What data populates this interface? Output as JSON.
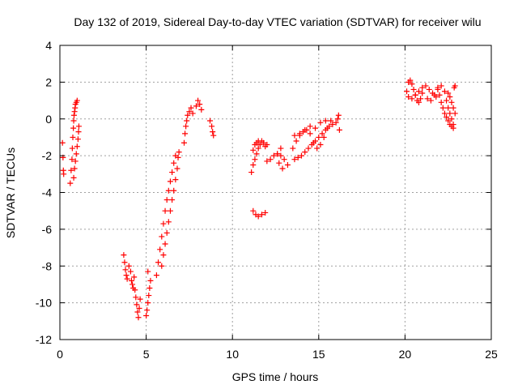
{
  "chart_data": {
    "type": "scatter",
    "title": "Day 132 of 2019, Sidereal Day-to-day VTEC variation (SDTVAR) for receiver wilu",
    "xlabel": "GPS time / hours",
    "ylabel": "SDTVAR / TECUs",
    "xlim": [
      0,
      25
    ],
    "ylim": [
      -12,
      4
    ],
    "xticks": [
      0,
      5,
      10,
      15,
      20,
      25
    ],
    "yticks": [
      -12,
      -10,
      -8,
      -6,
      -4,
      -2,
      0,
      2,
      4
    ],
    "grid": true,
    "legend": "none",
    "marker": "plus",
    "colors": {
      "series": "#ff0000",
      "axis": "#000000",
      "grid": "#a0a0a0"
    },
    "series": [
      {
        "values": [
          [
            0.15,
            -1.3
          ],
          [
            0.18,
            -2.1
          ],
          [
            0.2,
            -2.8
          ],
          [
            0.22,
            -3.0
          ],
          [
            0.6,
            -3.5
          ],
          [
            0.65,
            -2.8
          ],
          [
            0.7,
            -2.2
          ],
          [
            0.72,
            -1.6
          ],
          [
            0.75,
            -1.0
          ],
          [
            0.78,
            -0.5
          ],
          [
            0.8,
            -0.1
          ],
          [
            0.82,
            0.2
          ],
          [
            0.85,
            0.4
          ],
          [
            0.88,
            0.6
          ],
          [
            0.9,
            0.8
          ],
          [
            0.95,
            0.9
          ],
          [
            1.0,
            1.0
          ],
          [
            0.8,
            -3.2
          ],
          [
            0.85,
            -2.7
          ],
          [
            0.9,
            -2.3
          ],
          [
            0.95,
            -1.9
          ],
          [
            1.0,
            -1.5
          ],
          [
            1.05,
            -1.1
          ],
          [
            1.08,
            -0.7
          ],
          [
            1.1,
            -0.4
          ],
          [
            3.7,
            -7.4
          ],
          [
            3.75,
            -7.8
          ],
          [
            3.8,
            -8.2
          ],
          [
            3.85,
            -8.5
          ],
          [
            3.9,
            -8.7
          ],
          [
            4.0,
            -8.0
          ],
          [
            4.1,
            -8.3
          ],
          [
            4.15,
            -8.8
          ],
          [
            4.2,
            -9.0
          ],
          [
            4.25,
            -9.2
          ],
          [
            4.3,
            -8.6
          ],
          [
            4.35,
            -9.3
          ],
          [
            4.4,
            -9.7
          ],
          [
            4.45,
            -10.1
          ],
          [
            4.5,
            -10.5
          ],
          [
            4.55,
            -10.8
          ],
          [
            4.6,
            -10.3
          ],
          [
            4.65,
            -9.8
          ],
          [
            5.0,
            -10.7
          ],
          [
            5.05,
            -10.4
          ],
          [
            5.1,
            -10.0
          ],
          [
            5.15,
            -9.6
          ],
          [
            5.2,
            -9.2
          ],
          [
            5.25,
            -8.8
          ],
          [
            5.1,
            -8.3
          ],
          [
            5.6,
            -8.5
          ],
          [
            5.7,
            -7.8
          ],
          [
            5.8,
            -7.1
          ],
          [
            5.9,
            -6.4
          ],
          [
            6.0,
            -5.7
          ],
          [
            6.1,
            -5.0
          ],
          [
            6.2,
            -4.4
          ],
          [
            6.3,
            -3.9
          ],
          [
            6.4,
            -3.4
          ],
          [
            6.5,
            -2.9
          ],
          [
            6.6,
            -2.4
          ],
          [
            6.7,
            -2.0
          ],
          [
            5.9,
            -8.0
          ],
          [
            6.0,
            -7.4
          ],
          [
            6.1,
            -6.8
          ],
          [
            6.2,
            -6.2
          ],
          [
            6.3,
            -5.6
          ],
          [
            6.4,
            -5.0
          ],
          [
            6.5,
            -4.4
          ],
          [
            6.6,
            -3.9
          ],
          [
            6.7,
            -3.3
          ],
          [
            6.8,
            -2.7
          ],
          [
            6.85,
            -2.1
          ],
          [
            6.9,
            -1.8
          ],
          [
            7.2,
            -1.3
          ],
          [
            7.25,
            -0.8
          ],
          [
            7.3,
            -0.4
          ],
          [
            7.35,
            -0.1
          ],
          [
            7.4,
            0.2
          ],
          [
            7.5,
            0.4
          ],
          [
            7.6,
            0.6
          ],
          [
            7.7,
            0.3
          ],
          [
            7.9,
            0.7
          ],
          [
            8.0,
            1.0
          ],
          [
            8.1,
            0.8
          ],
          [
            8.2,
            0.5
          ],
          [
            8.7,
            -0.1
          ],
          [
            8.8,
            -0.4
          ],
          [
            8.85,
            -0.7
          ],
          [
            8.9,
            -0.9
          ],
          [
            11.1,
            -2.9
          ],
          [
            11.2,
            -2.5
          ],
          [
            11.3,
            -2.2
          ],
          [
            11.4,
            -1.9
          ],
          [
            11.5,
            -1.6
          ],
          [
            11.6,
            -1.4
          ],
          [
            11.7,
            -1.2
          ],
          [
            11.8,
            -1.3
          ],
          [
            11.9,
            -1.5
          ],
          [
            12.0,
            -1.4
          ],
          [
            11.2,
            -1.7
          ],
          [
            11.3,
            -1.4
          ],
          [
            11.4,
            -1.3
          ],
          [
            11.5,
            -1.2
          ],
          [
            12.0,
            -2.3
          ],
          [
            12.2,
            -2.2
          ],
          [
            12.4,
            -2.0
          ],
          [
            12.6,
            -1.9
          ],
          [
            12.8,
            -2.0
          ],
          [
            13.0,
            -2.2
          ],
          [
            13.2,
            -2.5
          ],
          [
            12.9,
            -2.7
          ],
          [
            12.7,
            -2.4
          ],
          [
            12.6,
            -1.9
          ],
          [
            12.8,
            -1.6
          ],
          [
            11.2,
            -5.0
          ],
          [
            11.35,
            -5.2
          ],
          [
            11.5,
            -5.3
          ],
          [
            11.7,
            -5.2
          ],
          [
            11.9,
            -5.1
          ],
          [
            13.6,
            -2.2
          ],
          [
            13.8,
            -2.1
          ],
          [
            14.0,
            -2.0
          ],
          [
            14.2,
            -1.8
          ],
          [
            14.4,
            -1.6
          ],
          [
            14.6,
            -1.4
          ],
          [
            14.8,
            -1.2
          ],
          [
            15.0,
            -1.0
          ],
          [
            15.2,
            -0.8
          ],
          [
            15.4,
            -0.6
          ],
          [
            15.6,
            -0.4
          ],
          [
            15.8,
            -0.3
          ],
          [
            13.5,
            -1.6
          ],
          [
            13.7,
            -1.2
          ],
          [
            13.9,
            -0.9
          ],
          [
            14.1,
            -0.7
          ],
          [
            14.3,
            -0.6
          ],
          [
            14.5,
            -0.8
          ],
          [
            14.7,
            -1.3
          ],
          [
            14.9,
            -1.6
          ],
          [
            15.1,
            -1.4
          ],
          [
            15.3,
            -1.0
          ],
          [
            15.5,
            -0.5
          ],
          [
            15.7,
            -0.1
          ],
          [
            13.6,
            -0.9
          ],
          [
            13.9,
            -0.8
          ],
          [
            14.2,
            -0.6
          ],
          [
            14.5,
            -0.4
          ],
          [
            14.8,
            -0.5
          ],
          [
            15.1,
            -0.2
          ],
          [
            15.4,
            -0.1
          ],
          [
            16.0,
            -0.2
          ],
          [
            16.1,
            0.0
          ],
          [
            16.15,
            0.2
          ],
          [
            16.2,
            -0.6
          ],
          [
            20.1,
            1.5
          ],
          [
            20.2,
            2.0
          ],
          [
            20.3,
            2.1
          ],
          [
            20.4,
            1.9
          ],
          [
            20.5,
            1.6
          ],
          [
            20.6,
            1.3
          ],
          [
            20.7,
            1.0
          ],
          [
            20.8,
            0.9
          ],
          [
            20.9,
            1.1
          ],
          [
            21.0,
            1.4
          ],
          [
            20.2,
            1.2
          ],
          [
            20.4,
            1.1
          ],
          [
            20.6,
            1.3
          ],
          [
            20.8,
            1.5
          ],
          [
            21.0,
            1.7
          ],
          [
            21.2,
            1.8
          ],
          [
            21.4,
            1.6
          ],
          [
            21.6,
            1.4
          ],
          [
            21.8,
            1.2
          ],
          [
            21.9,
            1.7
          ],
          [
            21.3,
            1.1
          ],
          [
            21.5,
            1.0
          ],
          [
            21.7,
            1.3
          ],
          [
            21.9,
            1.6
          ],
          [
            22.1,
            1.8
          ],
          [
            22.3,
            1.5
          ],
          [
            22.4,
            1.0
          ],
          [
            22.5,
            0.6
          ],
          [
            22.6,
            0.3
          ],
          [
            22.7,
            0.0
          ],
          [
            22.8,
            -0.3
          ],
          [
            22.0,
            1.3
          ],
          [
            22.1,
            0.9
          ],
          [
            22.2,
            0.6
          ],
          [
            22.3,
            0.3
          ],
          [
            22.4,
            0.1
          ],
          [
            22.5,
            -0.1
          ],
          [
            22.6,
            -0.3
          ],
          [
            22.7,
            -0.4
          ],
          [
            22.8,
            -0.5
          ],
          [
            22.5,
            1.4
          ],
          [
            22.6,
            1.2
          ],
          [
            22.7,
            0.9
          ],
          [
            22.8,
            0.6
          ],
          [
            22.9,
            0.3
          ],
          [
            22.9,
            1.8
          ],
          [
            22.85,
            1.7
          ]
        ]
      }
    ]
  }
}
